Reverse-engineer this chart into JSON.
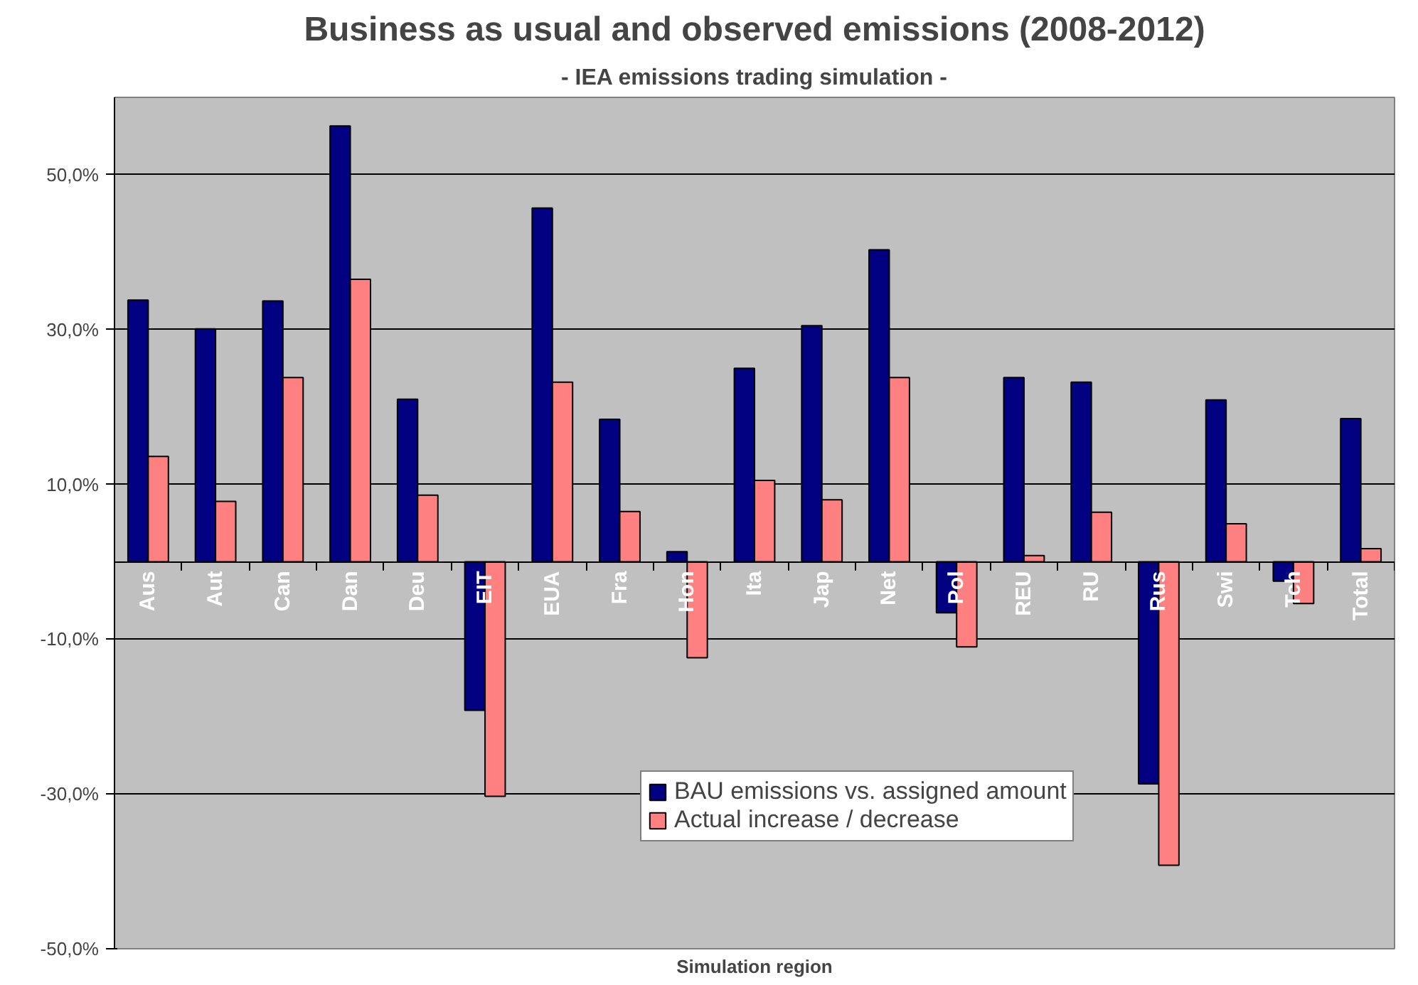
{
  "chart_data": {
    "type": "bar",
    "title": "Business as usual and observed emissions (2008-2012)",
    "subtitle": "- IEA emissions trading simulation -",
    "xlabel": "Simulation region",
    "categories": [
      "Aus",
      "Aut",
      "Can",
      "Dan",
      "Deu",
      "EIT",
      "EUA",
      "Fra",
      "Hon",
      "Ita",
      "Jap",
      "Net",
      "Pol",
      "REU",
      "RU",
      "Rus",
      "Swi",
      "Tch",
      "Total"
    ],
    "series": [
      {
        "name": "BAU emissions vs. assigned amount",
        "color": "#000080",
        "values": [
          33.8,
          30.1,
          33.7,
          56.3,
          21.0,
          -19.2,
          45.7,
          18.4,
          1.3,
          25.0,
          30.5,
          40.3,
          -6.6,
          23.8,
          23.2,
          -28.7,
          20.9,
          -2.5,
          18.5
        ]
      },
      {
        "name": "Actual increase / decrease",
        "color": "#ff8080",
        "values": [
          13.6,
          7.8,
          23.8,
          36.5,
          8.6,
          -30.3,
          23.2,
          6.5,
          -12.4,
          10.5,
          8.0,
          23.8,
          -11.0,
          0.8,
          6.4,
          -39.2,
          4.9,
          -5.4,
          1.7
        ]
      }
    ],
    "ylim": [
      -50,
      60
    ],
    "yticks": [
      {
        "value": -50,
        "label": "-50,0%"
      },
      {
        "value": -30,
        "label": "-30,0%"
      },
      {
        "value": -10,
        "label": "-10,0%"
      },
      {
        "value": 10,
        "label": "10,0%"
      },
      {
        "value": 30,
        "label": "30,0%"
      },
      {
        "value": 50,
        "label": "50,0%"
      }
    ],
    "grid": "y",
    "legend": "bottom"
  }
}
